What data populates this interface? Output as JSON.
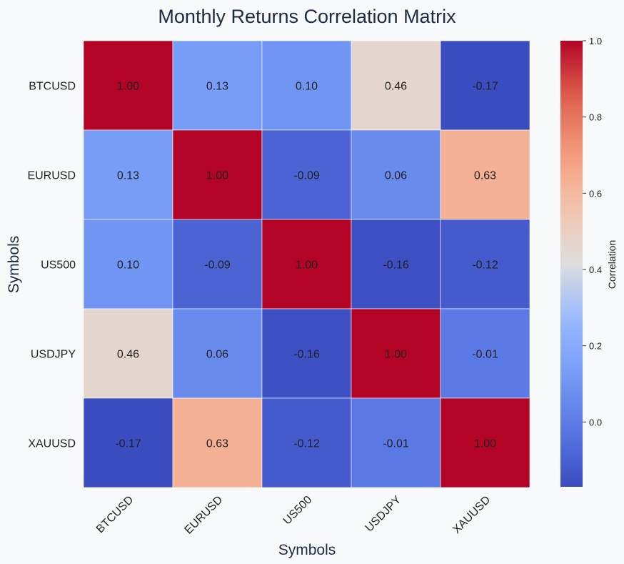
{
  "chart_data": {
    "type": "heatmap",
    "title": "Monthly Returns Correlation Matrix",
    "xlabel": "Symbols",
    "ylabel": "Symbols",
    "x_categories": [
      "BTCUSD",
      "EURUSD",
      "US500",
      "USDJPY",
      "XAUUSD"
    ],
    "y_categories": [
      "BTCUSD",
      "EURUSD",
      "US500",
      "USDJPY",
      "XAUUSD"
    ],
    "values": [
      [
        1.0,
        0.13,
        0.1,
        0.46,
        -0.17
      ],
      [
        0.13,
        1.0,
        -0.09,
        0.06,
        0.63
      ],
      [
        0.1,
        -0.09,
        1.0,
        -0.16,
        -0.12
      ],
      [
        0.46,
        0.06,
        -0.16,
        1.0,
        -0.01
      ],
      [
        -0.17,
        0.63,
        -0.12,
        -0.01,
        1.0
      ]
    ],
    "value_format_decimals": 2,
    "colormap": "coolwarm",
    "color_range": [
      -0.17,
      1.0
    ],
    "colorbar": {
      "label": "Correlation",
      "ticks": [
        "0.0",
        "0.2",
        "0.4",
        "0.6",
        "0.8",
        "1.0"
      ],
      "tick_values": [
        0.0,
        0.2,
        0.4,
        0.6,
        0.8,
        1.0
      ]
    },
    "colors": {
      "background": "#f7f9fb",
      "title": "#1f2a44",
      "cell_border": "#ffffff",
      "cell_text": "#222222"
    }
  }
}
